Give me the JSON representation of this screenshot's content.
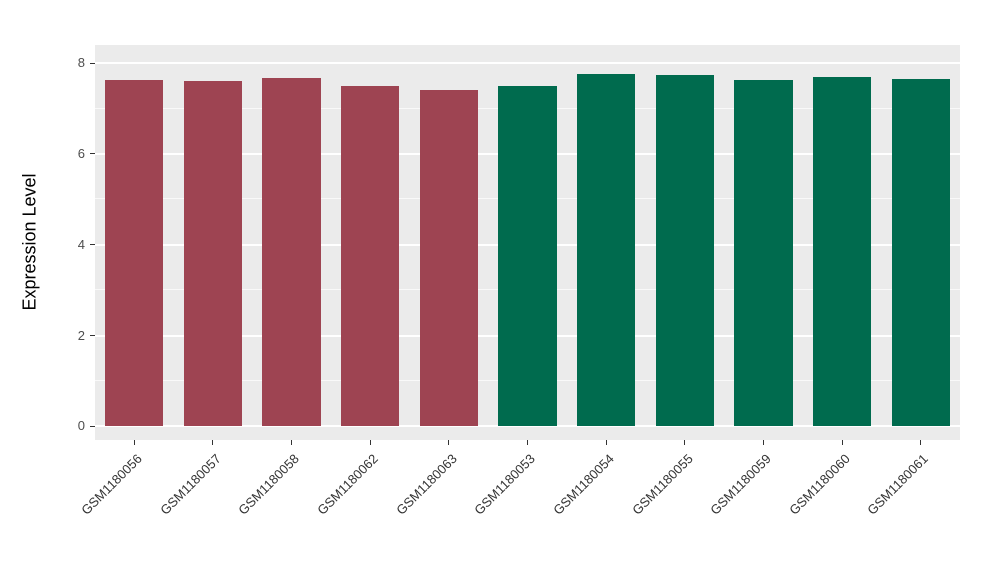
{
  "chart_data": {
    "type": "bar",
    "title": "",
    "xlabel": "",
    "ylabel": "Expression Level",
    "categories": [
      "GSM1180056",
      "GSM1180057",
      "GSM1180058",
      "GSM1180062",
      "GSM1180063",
      "GSM1180053",
      "GSM1180054",
      "GSM1180055",
      "GSM1180059",
      "GSM1180060",
      "GSM1180061"
    ],
    "values": [
      7.62,
      7.6,
      7.68,
      7.5,
      7.41,
      7.49,
      7.76,
      7.73,
      7.63,
      7.7,
      7.66
    ],
    "bar_colors": [
      "#9E4452",
      "#9E4452",
      "#9E4452",
      "#9E4452",
      "#9E4452",
      "#006B4E",
      "#006B4E",
      "#006B4E",
      "#006B4E",
      "#006B4E",
      "#006B4E"
    ],
    "groups": [
      "maroon-group",
      "maroon-group",
      "maroon-group",
      "maroon-group",
      "maroon-group",
      "green-group",
      "green-group",
      "green-group",
      "green-group",
      "green-group",
      "green-group"
    ],
    "group_colors": {
      "maroon-group": "#9E4452",
      "green-group": "#006B4E"
    },
    "ylim": [
      0,
      8
    ],
    "yticks": [
      0,
      2,
      4,
      6,
      8
    ],
    "minor_yticks": [
      1,
      3,
      5,
      7
    ],
    "grid": true,
    "legend": "none",
    "panel_background": "#EBEBEB",
    "gridline_color": "#FFFFFF"
  }
}
